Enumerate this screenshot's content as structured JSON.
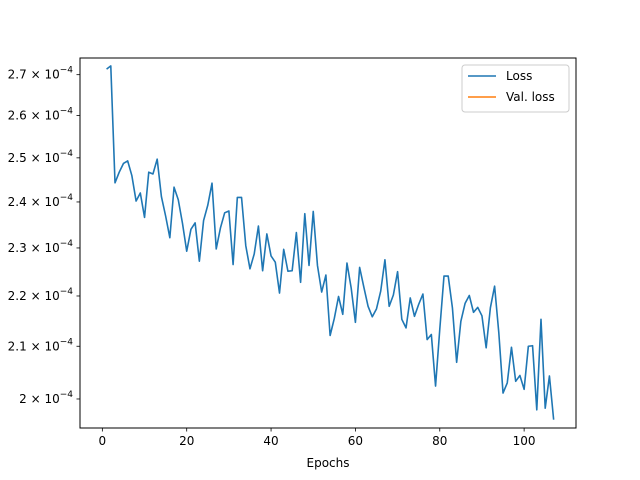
{
  "chart_data": {
    "type": "line",
    "title": "",
    "xlabel": "Epochs",
    "ylabel": "",
    "xlim": [
      -5.3,
      112.3
    ],
    "ylim": [
      0.0001947,
      0.0002742
    ],
    "yscale": "log",
    "grid": false,
    "legend_position": "top-right",
    "xticks": [
      0,
      20,
      40,
      60,
      80,
      100
    ],
    "yticks": [
      {
        "value": 0.0002,
        "mantissa": "2",
        "exponent": "−4"
      },
      {
        "value": 0.00021,
        "mantissa": "2.1",
        "exponent": "−4"
      },
      {
        "value": 0.00022,
        "mantissa": "2.2",
        "exponent": "−4"
      },
      {
        "value": 0.00023,
        "mantissa": "2.3",
        "exponent": "−4"
      },
      {
        "value": 0.00024,
        "mantissa": "2.4",
        "exponent": "−4"
      },
      {
        "value": 0.00025,
        "mantissa": "2.5",
        "exponent": "−4"
      },
      {
        "value": 0.00026,
        "mantissa": "2.6",
        "exponent": "−4"
      },
      {
        "value": 0.00027,
        "mantissa": "2.7",
        "exponent": "−4"
      }
    ],
    "tick_base": "10",
    "series": [
      {
        "name": "Loss",
        "color": "#1f77b4",
        "x": [
          1,
          2,
          3,
          4,
          5,
          6,
          7,
          8,
          9,
          10,
          11,
          12,
          13,
          14,
          15,
          16,
          17,
          18,
          19,
          20,
          21,
          22,
          23,
          24,
          25,
          26,
          27,
          28,
          29,
          30,
          31,
          32,
          33,
          34,
          35,
          36,
          37,
          38,
          39,
          40,
          41,
          42,
          43,
          44,
          45,
          46,
          47,
          48,
          49,
          50,
          51,
          52,
          53,
          54,
          55,
          56,
          57,
          58,
          59,
          60,
          61,
          62,
          63,
          64,
          65,
          66,
          67,
          68,
          69,
          70,
          71,
          72,
          73,
          74,
          75,
          76,
          77,
          78,
          79,
          80,
          81,
          82,
          83,
          84,
          85,
          86,
          87,
          88,
          89,
          90,
          91,
          92,
          93,
          94,
          95,
          96,
          97,
          98,
          99,
          100,
          101,
          102,
          103,
          104,
          105,
          106,
          107
        ],
        "y": [
          0.0002714,
          0.0002722,
          0.0002443,
          0.0002467,
          0.0002487,
          0.0002493,
          0.0002459,
          0.0002402,
          0.000242,
          0.0002366,
          0.0002467,
          0.0002463,
          0.0002497,
          0.0002412,
          0.0002369,
          0.0002322,
          0.0002433,
          0.0002405,
          0.0002353,
          0.0002293,
          0.000234,
          0.0002354,
          0.0002272,
          0.0002359,
          0.0002393,
          0.0002442,
          0.0002298,
          0.0002343,
          0.0002376,
          0.000238,
          0.0002265,
          0.000241,
          0.000241,
          0.0002305,
          0.0002256,
          0.0002287,
          0.0002347,
          0.0002252,
          0.000233,
          0.0002283,
          0.000227,
          0.0002206,
          0.0002297,
          0.0002251,
          0.0002252,
          0.0002333,
          0.0002228,
          0.0002374,
          0.0002263,
          0.0002379,
          0.0002263,
          0.0002208,
          0.0002243,
          0.0002121,
          0.0002155,
          0.0002199,
          0.0002163,
          0.0002268,
          0.0002216,
          0.0002147,
          0.0002259,
          0.0002218,
          0.0002179,
          0.0002158,
          0.0002174,
          0.000221,
          0.0002275,
          0.0002179,
          0.0002202,
          0.000225,
          0.0002153,
          0.0002136,
          0.0002196,
          0.0002159,
          0.0002183,
          0.0002204,
          0.0002113,
          0.0002123,
          0.0002024,
          0.0002133,
          0.0002241,
          0.0002241,
          0.0002176,
          0.0002069,
          0.0002149,
          0.0002185,
          0.0002201,
          0.0002167,
          0.0002177,
          0.000216,
          0.0002097,
          0.0002176,
          0.000222,
          0.0002126,
          0.0002011,
          0.000203,
          0.0002098,
          0.0002033,
          0.0002044,
          0.0002018,
          0.00021,
          0.0002101,
          0.000198,
          0.0002153,
          0.0001983,
          0.0002043,
          0.0001962
        ]
      },
      {
        "name": "Val. loss",
        "color": "#ff7f0e",
        "x": [],
        "y": []
      }
    ]
  }
}
